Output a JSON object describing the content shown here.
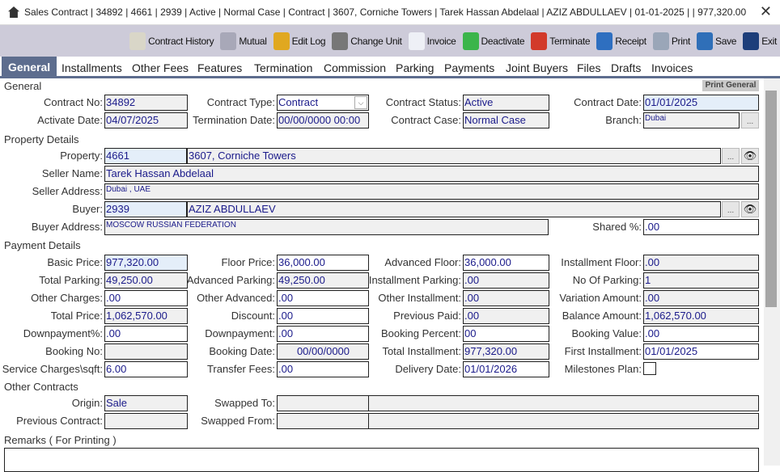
{
  "window": {
    "title": "Sales Contract | 34892 | 4661 | 2939 | Active | Normal Case | Contract | 3607, Corniche Towers | Tarek Hassan Abdelaal | AZIZ  ABDULLAEV | 01-01-2025 |  | 977,320.00",
    "close": "✕"
  },
  "toolbar": [
    {
      "label": "Contract History",
      "icon": "contract-history-icon",
      "color": "#d9d6c8"
    },
    {
      "label": "Mutual",
      "icon": "handshake-icon",
      "color": "#a8a8b8"
    },
    {
      "label": "Edit Log",
      "icon": "clock-icon",
      "color": "#e0a820"
    },
    {
      "label": "Change Unit",
      "icon": "change-unit-icon",
      "color": "#777"
    },
    {
      "label": "Invoice",
      "icon": "invoice-icon",
      "color": "#eef0f6"
    },
    {
      "label": "Deactivate",
      "icon": "deactivate-icon",
      "color": "#3bb54a"
    },
    {
      "label": "Terminate",
      "icon": "terminate-icon",
      "color": "#d23a2a"
    },
    {
      "label": "Receipt",
      "icon": "money-bag-icon",
      "color": "#2e6fc0"
    },
    {
      "label": "Print",
      "icon": "printer-icon",
      "color": "#9aa6b8"
    },
    {
      "label": "Save",
      "icon": "floppy-icon",
      "color": "#2f6fb8"
    },
    {
      "label": "Exit",
      "icon": "exit-icon",
      "color": "#1d3e7a"
    }
  ],
  "tabs": [
    "General",
    "Installments",
    "Other Fees",
    "Features",
    "Termination",
    "Commission",
    "Parking",
    "Payments",
    "Joint Buyers",
    "Files",
    "Drafts",
    "Invoices"
  ],
  "sections": {
    "general": "General",
    "property": "Property Details",
    "payment": "Payment Details",
    "other": "Other Contracts",
    "remarks": "Remarks ( For Printing )",
    "print_general": "Print General"
  },
  "general": {
    "contract_no": {
      "label": "Contract No:",
      "value": "34892"
    },
    "contract_type": {
      "label": "Contract Type:",
      "value": "Contract"
    },
    "contract_status": {
      "label": "Contract Status:",
      "value": "Active"
    },
    "contract_date": {
      "label": "Contract Date:",
      "value": "01/01/2025"
    },
    "activate_date": {
      "label": "Activate Date:",
      "value": "04/07/2025"
    },
    "termination_date": {
      "label": "Termination Date:",
      "value": "00/00/0000  00:00"
    },
    "contract_case": {
      "label": "Contract Case:",
      "value": "Normal Case"
    },
    "branch": {
      "label": "Branch:",
      "value": "Dubai"
    }
  },
  "property": {
    "property": {
      "label": "Property:",
      "id": "4661",
      "name": "3607, Corniche Towers"
    },
    "seller_name": {
      "label": "Seller Name:",
      "value": "Tarek Hassan Abdelaal"
    },
    "seller_address": {
      "label": "Seller Address:",
      "value": "Dubai , UAE"
    },
    "buyer": {
      "label": "Buyer:",
      "id": "2939",
      "name": "AZIZ  ABDULLAEV"
    },
    "buyer_address": {
      "label": "Buyer Address:",
      "value": "MOSCOW RUSSIAN FEDERATION"
    },
    "shared": {
      "label": "Shared %:",
      "value": ".00"
    }
  },
  "payment": {
    "basic_price": {
      "label": "Basic Price:",
      "value": "977,320.00"
    },
    "floor_price": {
      "label": "Floor Price:",
      "value": "36,000.00"
    },
    "advanced_floor": {
      "label": "Advanced Floor:",
      "value": "36,000.00"
    },
    "installment_floor": {
      "label": "Installment Floor:",
      "value": ".00"
    },
    "total_parking": {
      "label": "Total Parking:",
      "value": "49,250.00"
    },
    "advanced_parking": {
      "label": "Advanced Parking:",
      "value": "49,250.00"
    },
    "installment_parking": {
      "label": "Installment Parking:",
      "value": ".00"
    },
    "no_of_parking": {
      "label": "No Of Parking:",
      "value": "1"
    },
    "other_charges": {
      "label": "Other Charges:",
      "value": ".00"
    },
    "other_advanced": {
      "label": "Other Advanced:",
      "value": ".00"
    },
    "other_installment": {
      "label": "Other Installment:",
      "value": ".00"
    },
    "variation_amount": {
      "label": "Variation Amount:",
      "value": ".00"
    },
    "total_price": {
      "label": "Total Price:",
      "value": "1,062,570.00"
    },
    "discount": {
      "label": "Discount:",
      "value": ".00"
    },
    "previous_paid": {
      "label": "Previous Paid:",
      "value": ".00"
    },
    "balance_amount": {
      "label": "Balance Amount:",
      "value": "1,062,570.00"
    },
    "downpayment_pct": {
      "label": "Downpayment%:",
      "value": ".00"
    },
    "downpayment": {
      "label": "Downpayment:",
      "value": ".00"
    },
    "booking_percent": {
      "label": "Booking Percent:",
      "value": "00"
    },
    "booking_value": {
      "label": "Booking Value:",
      "value": ".00"
    },
    "booking_no": {
      "label": "Booking No:",
      "value": ""
    },
    "booking_date": {
      "label": "Booking Date:",
      "value": "00/00/0000"
    },
    "total_installment": {
      "label": "Total Installment:",
      "value": "977,320.00"
    },
    "first_installment": {
      "label": "First Installment:",
      "value": "01/01/2025"
    },
    "service_charges": {
      "label": "Service Charges\\sqft:",
      "value": "6.00"
    },
    "transfer_fees": {
      "label": "Transfer Fees:",
      "value": ".00"
    },
    "delivery_date": {
      "label": "Delivery Date:",
      "value": "01/01/2026"
    },
    "milestones_plan": {
      "label": "Milestones Plan:",
      "checked": false
    }
  },
  "other": {
    "origin": {
      "label": "Origin:",
      "value": "Sale"
    },
    "swapped_to": {
      "label": "Swapped To:",
      "value": ""
    },
    "previous_contract": {
      "label": "Previous Contract:",
      "value": ""
    },
    "swapped_from": {
      "label": "Swapped From:",
      "value": ""
    }
  }
}
